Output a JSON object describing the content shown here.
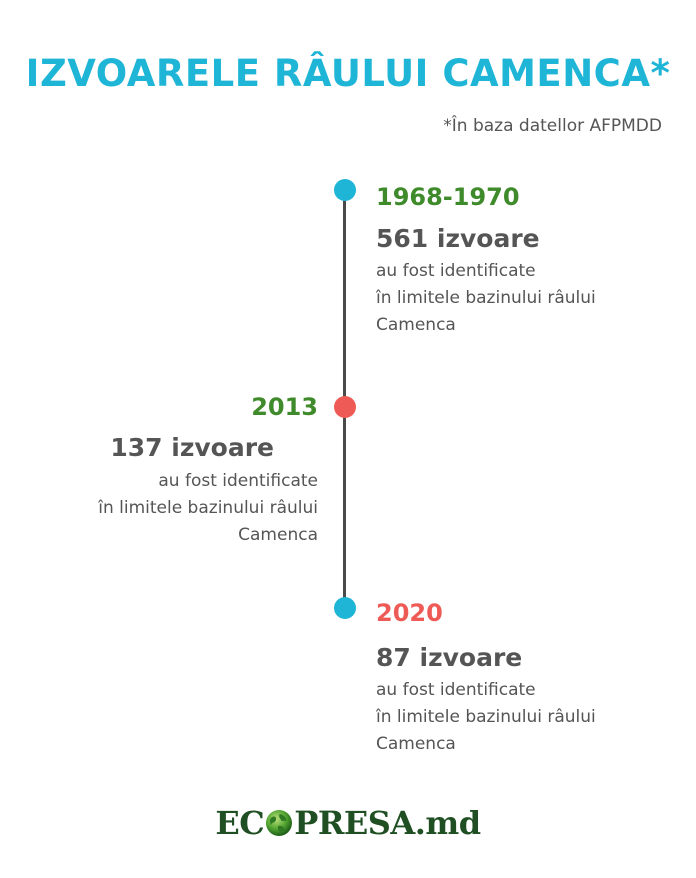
{
  "header": {
    "title": "IZVOARELE RÂULUI CAMENCA*",
    "footnote": "*În baza datellor AFPMDD"
  },
  "colors": {
    "accent_blue": "#1fb5d6",
    "accent_red": "#ee5b56",
    "green": "#3f8a2b",
    "text_gray": "#555555"
  },
  "timeline": [
    {
      "year": "1968-1970",
      "year_color": "green",
      "dot_color": "blue",
      "count": "561 izvoare",
      "line1": "au fost identificate",
      "line2": "în limitele bazinului râului",
      "line3": "Camenca"
    },
    {
      "year": "2013",
      "year_color": "green",
      "dot_color": "red",
      "count": "137 izvoare",
      "line1": "au fost identificate",
      "line2": "în limitele bazinului râului",
      "line3": "Camenca"
    },
    {
      "year": "2020",
      "year_color": "red",
      "dot_color": "blue",
      "count": "87 izvoare",
      "line1": "au fost identificate",
      "line2": "în limitele bazinului râului",
      "line3": "Camenca"
    }
  ],
  "footer": {
    "logo_left": "EC",
    "logo_right": "PRESA.md",
    "logo_icon": "globe-icon"
  }
}
